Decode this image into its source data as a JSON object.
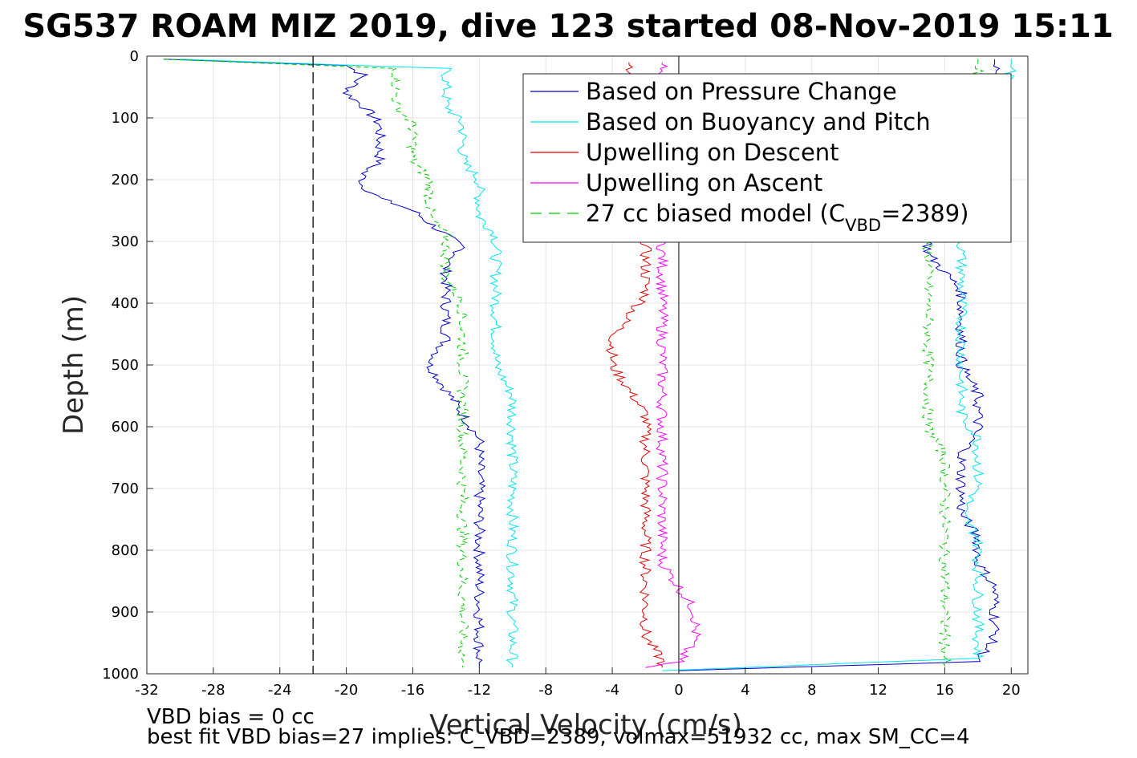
{
  "chart_data": {
    "type": "line",
    "title": "SG537 ROAM MIZ 2019, dive 123 started 08-Nov-2019 15:11",
    "xlabel": "Vertical Velocity (cm/s)",
    "ylabel": "Depth (m)",
    "xlim": [
      -32,
      21
    ],
    "ylim": [
      0,
      1000
    ],
    "y_reversed": true,
    "grid": true,
    "legend_position": "top-right",
    "xticks": [
      "-32",
      "-28",
      "-24",
      "-20",
      "-16",
      "-12",
      "-8",
      "-4",
      "0",
      "4",
      "8",
      "12",
      "16",
      "20"
    ],
    "xtick_values": [
      -32,
      -28,
      -24,
      -20,
      -16,
      -12,
      -8,
      -4,
      0,
      4,
      8,
      12,
      16,
      20
    ],
    "yticks": [
      "0",
      "100",
      "200",
      "300",
      "400",
      "500",
      "600",
      "700",
      "800",
      "900",
      "1000"
    ],
    "ytick_values": [
      0,
      100,
      200,
      300,
      400,
      500,
      600,
      700,
      800,
      900,
      1000
    ],
    "reference_line_x": -22,
    "zero_line_x": 0,
    "legend": [
      {
        "label": "Based on Pressure Change",
        "color": "#0000cc",
        "style": "solid"
      },
      {
        "label": "Based on Buoyancy and Pitch",
        "color": "#00e5ee",
        "style": "solid"
      },
      {
        "label": "Upwelling on Descent",
        "color": "#e00000",
        "style": "solid"
      },
      {
        "label": "Upwelling on Ascent",
        "color": "#ff00ff",
        "style": "solid"
      },
      {
        "label": "27 cc biased model (C",
        "sub": "VBD",
        "suffix": "=2389)",
        "color": "#00cc00",
        "style": "dashed"
      }
    ],
    "series": [
      {
        "name": "Based on Pressure Change",
        "color": "#0000cc",
        "segment": "descent",
        "points": [
          [
            -31,
            5
          ],
          [
            -20,
            15
          ],
          [
            -19,
            30
          ],
          [
            -20,
            60
          ],
          [
            -19,
            80
          ],
          [
            -18,
            110
          ],
          [
            -18,
            140
          ],
          [
            -18,
            170
          ],
          [
            -19,
            190
          ],
          [
            -19,
            210
          ],
          [
            -18,
            230
          ],
          [
            -16,
            250
          ],
          [
            -15,
            270
          ],
          [
            -14,
            290
          ],
          [
            -13,
            310
          ],
          [
            -14,
            340
          ],
          [
            -14,
            360
          ],
          [
            -14,
            390
          ],
          [
            -14,
            420
          ],
          [
            -14,
            460
          ],
          [
            -15,
            500
          ],
          [
            -14,
            540
          ],
          [
            -13,
            580
          ],
          [
            -12,
            620
          ],
          [
            -12,
            660
          ],
          [
            -12,
            700
          ],
          [
            -12,
            740
          ],
          [
            -12,
            780
          ],
          [
            -12,
            820
          ],
          [
            -12,
            860
          ],
          [
            -12,
            900
          ],
          [
            -12,
            940
          ],
          [
            -12,
            970
          ],
          [
            -12,
            990
          ]
        ]
      },
      {
        "name": "Based on Buoyancy and Pitch",
        "color": "#00e5ee",
        "segment": "descent",
        "points": [
          [
            -30,
            5
          ],
          [
            -14,
            20
          ],
          [
            -14,
            50
          ],
          [
            -14,
            80
          ],
          [
            -13,
            110
          ],
          [
            -13,
            140
          ],
          [
            -13,
            170
          ],
          [
            -12,
            200
          ],
          [
            -12,
            230
          ],
          [
            -12,
            260
          ],
          [
            -11,
            290
          ],
          [
            -11,
            320
          ],
          [
            -11,
            360
          ],
          [
            -11,
            400
          ],
          [
            -11,
            450
          ],
          [
            -11,
            500
          ],
          [
            -10,
            550
          ],
          [
            -10,
            600
          ],
          [
            -10,
            650
          ],
          [
            -10,
            700
          ],
          [
            -10,
            750
          ],
          [
            -10,
            800
          ],
          [
            -10,
            850
          ],
          [
            -10,
            900
          ],
          [
            -10,
            950
          ],
          [
            -10,
            990
          ]
        ]
      },
      {
        "name": "Upwelling on Descent",
        "color": "#e00000",
        "segment": "descent",
        "points": [
          [
            -3,
            10
          ],
          [
            -2,
            300
          ],
          [
            -2,
            330
          ],
          [
            -2,
            360
          ],
          [
            -2,
            390
          ],
          [
            -3,
            420
          ],
          [
            -4,
            460
          ],
          [
            -4,
            500
          ],
          [
            -3,
            540
          ],
          [
            -2,
            580
          ],
          [
            -2,
            620
          ],
          [
            -2,
            660
          ],
          [
            -2,
            700
          ],
          [
            -2,
            740
          ],
          [
            -2,
            780
          ],
          [
            -2,
            820
          ],
          [
            -2,
            860
          ],
          [
            -2,
            900
          ],
          [
            -2,
            940
          ],
          [
            -1,
            980
          ],
          [
            -1,
            990
          ]
        ]
      },
      {
        "name": "Upwelling on Ascent",
        "color": "#ff00ff",
        "segment": "ascent",
        "points": [
          [
            -1,
            10
          ],
          [
            -1,
            20
          ],
          [
            -1,
            320
          ],
          [
            -1,
            350
          ],
          [
            -1,
            380
          ],
          [
            -1,
            420
          ],
          [
            -1,
            460
          ],
          [
            -1,
            500
          ],
          [
            -1,
            540
          ],
          [
            -1,
            580
          ],
          [
            -1,
            620
          ],
          [
            -1,
            660
          ],
          [
            -1,
            700
          ],
          [
            -1,
            740
          ],
          [
            -1,
            780
          ],
          [
            -1,
            820
          ],
          [
            0,
            860
          ],
          [
            1,
            900
          ],
          [
            1,
            940
          ],
          [
            0,
            980
          ],
          [
            -2,
            990
          ]
        ]
      },
      {
        "name": "27 cc biased model (C_VBD=2389)",
        "color": "#00cc00",
        "segment": "descent",
        "dashed": true,
        "points": [
          [
            -31,
            5
          ],
          [
            -17,
            20
          ],
          [
            -17,
            50
          ],
          [
            -17,
            80
          ],
          [
            -16,
            110
          ],
          [
            -16,
            140
          ],
          [
            -16,
            170
          ],
          [
            -15,
            200
          ],
          [
            -15,
            230
          ],
          [
            -15,
            260
          ],
          [
            -14,
            290
          ],
          [
            -14,
            320
          ],
          [
            -14,
            360
          ],
          [
            -13,
            400
          ],
          [
            -13,
            450
          ],
          [
            -13,
            500
          ],
          [
            -13,
            550
          ],
          [
            -13,
            600
          ],
          [
            -13,
            650
          ],
          [
            -13,
            700
          ],
          [
            -13,
            750
          ],
          [
            -13,
            800
          ],
          [
            -13,
            850
          ],
          [
            -13,
            900
          ],
          [
            -13,
            950
          ],
          [
            -13,
            990
          ]
        ]
      },
      {
        "name": "Based on Pressure Change (ascent)",
        "color": "#0000cc",
        "segment": "ascent",
        "points": [
          [
            19,
            5
          ],
          [
            19,
            20
          ],
          [
            15,
            300
          ],
          [
            15,
            320
          ],
          [
            16,
            350
          ],
          [
            17,
            380
          ],
          [
            17,
            410
          ],
          [
            17,
            450
          ],
          [
            17,
            500
          ],
          [
            18,
            550
          ],
          [
            18,
            600
          ],
          [
            17,
            650
          ],
          [
            17,
            700
          ],
          [
            17,
            740
          ],
          [
            18,
            780
          ],
          [
            18,
            820
          ],
          [
            19,
            860
          ],
          [
            19,
            900
          ],
          [
            19,
            940
          ],
          [
            18,
            980
          ],
          [
            0,
            995
          ]
        ]
      },
      {
        "name": "Based on Buoyancy and Pitch (ascent)",
        "color": "#00e5ee",
        "segment": "ascent",
        "points": [
          [
            20,
            5
          ],
          [
            20,
            20
          ],
          [
            17,
            300
          ],
          [
            17,
            320
          ],
          [
            17,
            350
          ],
          [
            17,
            380
          ],
          [
            17,
            420
          ],
          [
            17,
            460
          ],
          [
            17,
            500
          ],
          [
            17,
            540
          ],
          [
            17,
            580
          ],
          [
            18,
            620
          ],
          [
            18,
            660
          ],
          [
            18,
            700
          ],
          [
            17,
            740
          ],
          [
            18,
            780
          ],
          [
            18,
            820
          ],
          [
            18,
            860
          ],
          [
            18,
            900
          ],
          [
            18,
            940
          ],
          [
            18,
            975
          ],
          [
            -1,
            995
          ]
        ]
      },
      {
        "name": "27 cc biased model (ascent)",
        "color": "#00cc00",
        "segment": "ascent",
        "dashed": true,
        "points": [
          [
            18,
            5
          ],
          [
            18,
            20
          ],
          [
            15,
            300
          ],
          [
            15,
            330
          ],
          [
            15,
            360
          ],
          [
            15,
            400
          ],
          [
            15,
            450
          ],
          [
            15,
            500
          ],
          [
            15,
            550
          ],
          [
            15,
            600
          ],
          [
            16,
            650
          ],
          [
            16,
            700
          ],
          [
            16,
            750
          ],
          [
            16,
            800
          ],
          [
            16,
            850
          ],
          [
            16,
            900
          ],
          [
            16,
            950
          ],
          [
            16,
            990
          ]
        ]
      }
    ]
  },
  "footer": {
    "line1": "VBD bias = 0 cc",
    "line2": "best fit VBD bias=27 implies: C_VBD=2389, volmax=51932 cc, max SM_CC=4"
  }
}
